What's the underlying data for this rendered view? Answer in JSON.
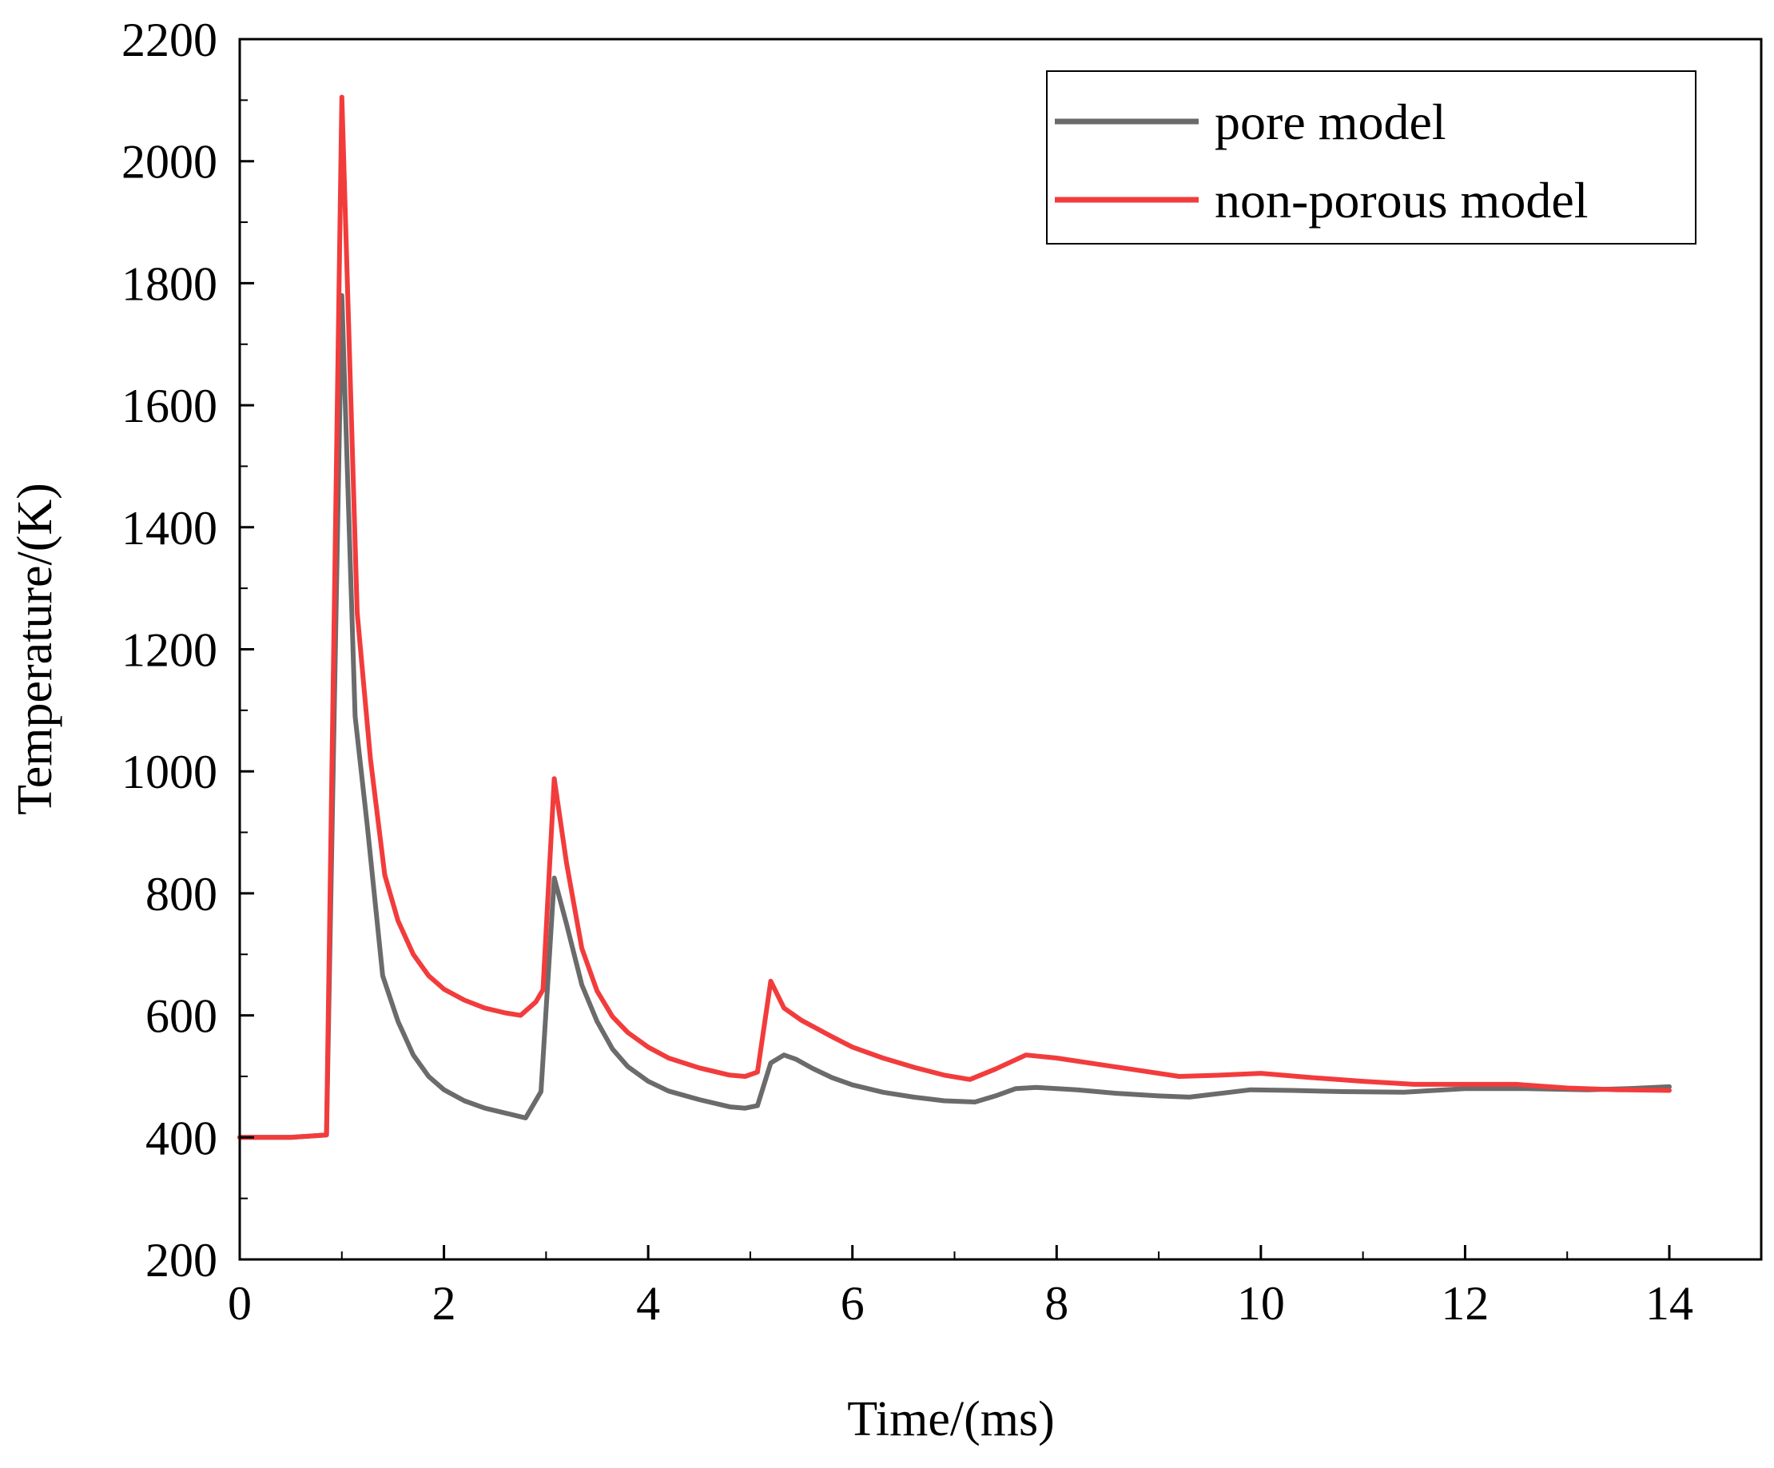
{
  "chart_data": {
    "type": "line",
    "title": "",
    "xlabel": "Time/(ms)",
    "ylabel": "Temperature/(K)",
    "xlim": [
      0,
      14.9
    ],
    "ylim": [
      200,
      2200
    ],
    "xticks": [
      0,
      2,
      4,
      6,
      8,
      10,
      12,
      14
    ],
    "yticks": [
      200,
      400,
      600,
      800,
      1000,
      1200,
      1400,
      1600,
      1800,
      2000,
      2200
    ],
    "grid": false,
    "legend_position": "top-right",
    "series": [
      {
        "name": "pore model",
        "color": "#6b6b6b",
        "points": [
          [
            0,
            400
          ],
          [
            0.5,
            400
          ],
          [
            0.85,
            404
          ],
          [
            1.0,
            1780
          ],
          [
            1.13,
            1090
          ],
          [
            1.25,
            910
          ],
          [
            1.4,
            665
          ],
          [
            1.55,
            590
          ],
          [
            1.7,
            535
          ],
          [
            1.85,
            500
          ],
          [
            2.0,
            478
          ],
          [
            2.2,
            460
          ],
          [
            2.4,
            448
          ],
          [
            2.6,
            440
          ],
          [
            2.8,
            432
          ],
          [
            2.95,
            475
          ],
          [
            3.08,
            825
          ],
          [
            3.2,
            750
          ],
          [
            3.35,
            650
          ],
          [
            3.5,
            590
          ],
          [
            3.65,
            545
          ],
          [
            3.8,
            516
          ],
          [
            4.0,
            492
          ],
          [
            4.2,
            476
          ],
          [
            4.5,
            462
          ],
          [
            4.8,
            450
          ],
          [
            4.95,
            448
          ],
          [
            5.07,
            452
          ],
          [
            5.2,
            522
          ],
          [
            5.33,
            535
          ],
          [
            5.45,
            528
          ],
          [
            5.6,
            514
          ],
          [
            5.8,
            498
          ],
          [
            6.0,
            486
          ],
          [
            6.3,
            474
          ],
          [
            6.6,
            466
          ],
          [
            6.9,
            460
          ],
          [
            7.2,
            458
          ],
          [
            7.4,
            468
          ],
          [
            7.6,
            480
          ],
          [
            7.8,
            482
          ],
          [
            8.2,
            478
          ],
          [
            8.6,
            472
          ],
          [
            9.0,
            468
          ],
          [
            9.3,
            466
          ],
          [
            9.6,
            472
          ],
          [
            9.9,
            478
          ],
          [
            10.3,
            477
          ],
          [
            10.8,
            475
          ],
          [
            11.4,
            474
          ],
          [
            12.0,
            480
          ],
          [
            12.6,
            480
          ],
          [
            13.2,
            478
          ],
          [
            13.6,
            480
          ],
          [
            14.0,
            483
          ]
        ]
      },
      {
        "name": "non-porous model",
        "color": "#f23c3c",
        "points": [
          [
            0,
            400
          ],
          [
            0.5,
            400
          ],
          [
            0.85,
            404
          ],
          [
            1.0,
            2105
          ],
          [
            1.15,
            1260
          ],
          [
            1.28,
            1020
          ],
          [
            1.42,
            830
          ],
          [
            1.55,
            755
          ],
          [
            1.7,
            700
          ],
          [
            1.85,
            665
          ],
          [
            2.0,
            643
          ],
          [
            2.2,
            625
          ],
          [
            2.4,
            612
          ],
          [
            2.6,
            604
          ],
          [
            2.75,
            600
          ],
          [
            2.9,
            622
          ],
          [
            2.97,
            642
          ],
          [
            3.08,
            988
          ],
          [
            3.2,
            850
          ],
          [
            3.35,
            710
          ],
          [
            3.5,
            640
          ],
          [
            3.65,
            598
          ],
          [
            3.8,
            572
          ],
          [
            4.0,
            548
          ],
          [
            4.2,
            530
          ],
          [
            4.5,
            514
          ],
          [
            4.8,
            502
          ],
          [
            4.95,
            500
          ],
          [
            5.07,
            507
          ],
          [
            5.2,
            656
          ],
          [
            5.33,
            612
          ],
          [
            5.5,
            592
          ],
          [
            5.8,
            565
          ],
          [
            6.0,
            548
          ],
          [
            6.3,
            530
          ],
          [
            6.6,
            515
          ],
          [
            6.9,
            502
          ],
          [
            7.15,
            495
          ],
          [
            7.4,
            512
          ],
          [
            7.7,
            535
          ],
          [
            8.0,
            530
          ],
          [
            8.4,
            520
          ],
          [
            8.8,
            510
          ],
          [
            9.2,
            500
          ],
          [
            9.6,
            502
          ],
          [
            10.0,
            505
          ],
          [
            10.5,
            498
          ],
          [
            11.0,
            492
          ],
          [
            11.5,
            487
          ],
          [
            12.0,
            487
          ],
          [
            12.5,
            487
          ],
          [
            13.0,
            481
          ],
          [
            13.5,
            478
          ],
          [
            14.0,
            477
          ]
        ]
      }
    ]
  }
}
